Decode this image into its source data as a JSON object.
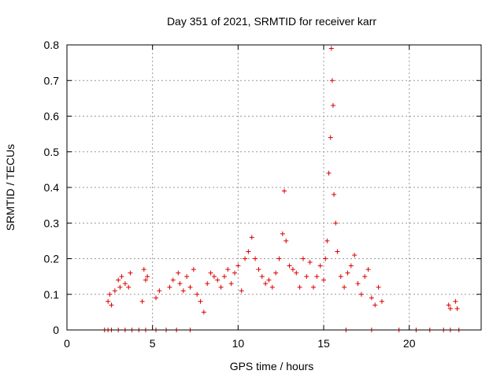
{
  "chart_data": {
    "type": "scatter",
    "title": "Day 351 of 2021, SRMTID for receiver karr",
    "xlabel": "GPS time / hours",
    "ylabel": "SRMTID / TECUs",
    "xlim": [
      0,
      24.2
    ],
    "ylim": [
      0,
      0.8
    ],
    "x_ticks": [
      0,
      5,
      10,
      15,
      20
    ],
    "x_tick_labels": [
      "0",
      "5",
      "10",
      "15",
      "20"
    ],
    "y_ticks": [
      0,
      0.1,
      0.2,
      0.3,
      0.4,
      0.5,
      0.6,
      0.7,
      0.8
    ],
    "y_tick_labels": [
      "0",
      "0.1",
      "0.2",
      "0.3",
      "0.4",
      "0.5",
      "0.6",
      "0.7",
      "0.8"
    ],
    "grid": true,
    "marker": "+",
    "series": [
      {
        "name": "SRMTID",
        "color": "#dd0000",
        "points": [
          [
            2.4,
            0.08
          ],
          [
            2.5,
            0.1
          ],
          [
            2.6,
            0.07
          ],
          [
            2.8,
            0.11
          ],
          [
            3.0,
            0.14
          ],
          [
            3.1,
            0.12
          ],
          [
            3.2,
            0.15
          ],
          [
            3.4,
            0.13
          ],
          [
            3.6,
            0.12
          ],
          [
            3.7,
            0.16
          ],
          [
            4.4,
            0.08
          ],
          [
            4.5,
            0.17
          ],
          [
            4.6,
            0.14
          ],
          [
            4.7,
            0.15
          ],
          [
            5.2,
            0.09
          ],
          [
            5.4,
            0.11
          ],
          [
            6.0,
            0.12
          ],
          [
            6.2,
            0.14
          ],
          [
            6.5,
            0.16
          ],
          [
            6.6,
            0.13
          ],
          [
            6.8,
            0.11
          ],
          [
            7.0,
            0.15
          ],
          [
            7.2,
            0.12
          ],
          [
            7.4,
            0.17
          ],
          [
            7.6,
            0.1
          ],
          [
            7.8,
            0.08
          ],
          [
            8.0,
            0.05
          ],
          [
            8.2,
            0.13
          ],
          [
            8.4,
            0.16
          ],
          [
            8.6,
            0.15
          ],
          [
            8.8,
            0.14
          ],
          [
            9.0,
            0.12
          ],
          [
            9.2,
            0.15
          ],
          [
            9.4,
            0.17
          ],
          [
            9.6,
            0.13
          ],
          [
            9.8,
            0.16
          ],
          [
            10.0,
            0.18
          ],
          [
            10.2,
            0.11
          ],
          [
            10.4,
            0.2
          ],
          [
            10.6,
            0.22
          ],
          [
            10.8,
            0.26
          ],
          [
            11.0,
            0.2
          ],
          [
            11.2,
            0.17
          ],
          [
            11.4,
            0.15
          ],
          [
            11.6,
            0.13
          ],
          [
            11.8,
            0.14
          ],
          [
            12.0,
            0.12
          ],
          [
            12.2,
            0.16
          ],
          [
            12.4,
            0.2
          ],
          [
            12.6,
            0.27
          ],
          [
            12.7,
            0.39
          ],
          [
            12.8,
            0.25
          ],
          [
            13.0,
            0.18
          ],
          [
            13.2,
            0.17
          ],
          [
            13.4,
            0.16
          ],
          [
            13.6,
            0.12
          ],
          [
            13.8,
            0.2
          ],
          [
            14.0,
            0.15
          ],
          [
            14.2,
            0.19
          ],
          [
            14.4,
            0.12
          ],
          [
            14.6,
            0.15
          ],
          [
            14.8,
            0.18
          ],
          [
            15.0,
            0.14
          ],
          [
            15.1,
            0.2
          ],
          [
            15.2,
            0.25
          ],
          [
            15.3,
            0.44
          ],
          [
            15.4,
            0.54
          ],
          [
            15.45,
            0.79
          ],
          [
            15.5,
            0.7
          ],
          [
            15.55,
            0.63
          ],
          [
            15.6,
            0.38
          ],
          [
            15.7,
            0.3
          ],
          [
            15.8,
            0.22
          ],
          [
            16.0,
            0.15
          ],
          [
            16.2,
            0.12
          ],
          [
            16.4,
            0.16
          ],
          [
            16.6,
            0.18
          ],
          [
            16.8,
            0.21
          ],
          [
            17.0,
            0.13
          ],
          [
            17.2,
            0.1
          ],
          [
            17.4,
            0.15
          ],
          [
            17.6,
            0.17
          ],
          [
            17.8,
            0.09
          ],
          [
            18.0,
            0.07
          ],
          [
            18.2,
            0.12
          ],
          [
            18.4,
            0.08
          ],
          [
            22.3,
            0.07
          ],
          [
            22.4,
            0.06
          ],
          [
            22.7,
            0.08
          ],
          [
            22.8,
            0.06
          ],
          [
            2.2,
            0
          ],
          [
            2.4,
            0
          ],
          [
            2.6,
            0
          ],
          [
            3.0,
            0
          ],
          [
            3.4,
            0
          ],
          [
            3.8,
            0
          ],
          [
            4.2,
            0
          ],
          [
            4.6,
            0
          ],
          [
            5.2,
            0
          ],
          [
            5.8,
            0
          ],
          [
            6.4,
            0
          ],
          [
            7.2,
            0
          ],
          [
            16.3,
            0
          ],
          [
            17.8,
            0
          ],
          [
            19.4,
            0
          ],
          [
            20.4,
            0
          ],
          [
            21.2,
            0
          ],
          [
            22.0,
            0
          ],
          [
            22.4,
            0
          ],
          [
            22.9,
            0
          ]
        ]
      }
    ]
  }
}
